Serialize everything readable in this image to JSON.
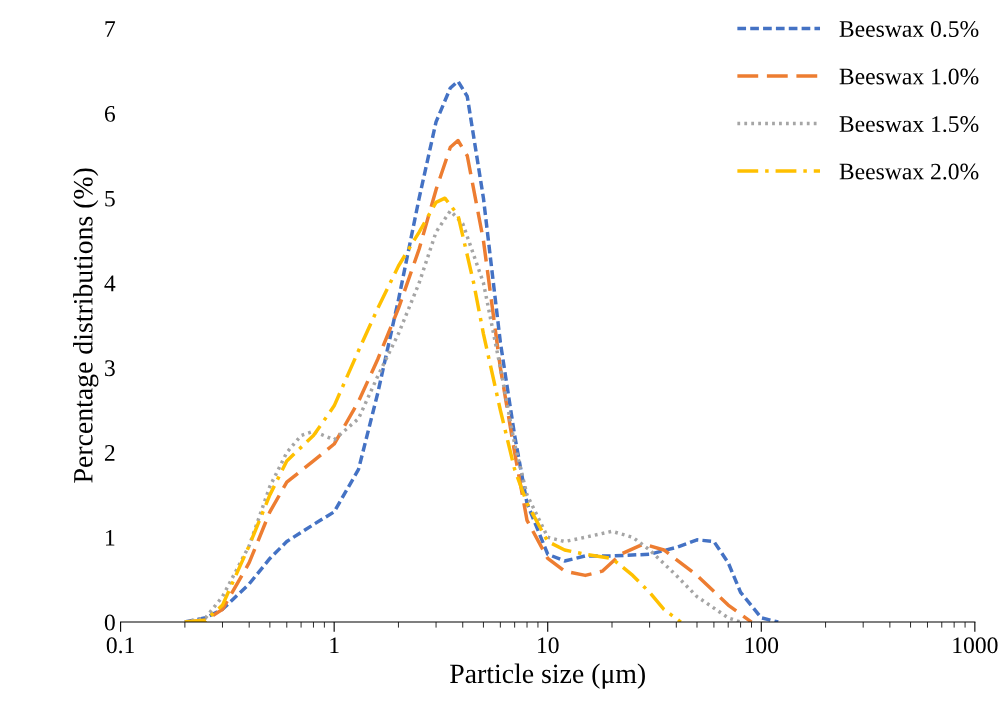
{
  "chart_data": {
    "type": "line",
    "xlabel": "Particle size (μm)",
    "ylabel": "Percentage distributions (%)",
    "log": "x",
    "xlim": [
      0.1,
      1000
    ],
    "xticks": [
      0.1,
      1,
      10,
      100,
      1000
    ],
    "ylim": [
      0,
      7
    ],
    "yticks": [
      0,
      1,
      2,
      3,
      4,
      5,
      6,
      7
    ],
    "grid": false,
    "legend": "top right",
    "marker": "none",
    "series": [
      {
        "name": "Beeswax 0.5%",
        "color": "#4472c4",
        "line_style": "dashed",
        "x": [
          0.2,
          0.25,
          0.3,
          0.4,
          0.5,
          0.6,
          0.8,
          1,
          1.3,
          1.6,
          2,
          2.5,
          3,
          3.5,
          3.8,
          4.2,
          5,
          6,
          7,
          8,
          10,
          12,
          15,
          20,
          30,
          40,
          50,
          60,
          70,
          80,
          100,
          120
        ],
        "values": [
          0,
          0.05,
          0.15,
          0.45,
          0.75,
          0.95,
          1.15,
          1.3,
          1.8,
          2.7,
          3.8,
          5.0,
          5.9,
          6.3,
          6.38,
          6.2,
          5.0,
          3.3,
          2.2,
          1.4,
          0.8,
          0.72,
          0.78,
          0.78,
          0.8,
          0.88,
          0.97,
          0.95,
          0.7,
          0.35,
          0.05,
          0
        ]
      },
      {
        "name": "Beeswax 1.0%",
        "color": "#ed7d31",
        "line_style": "long_dashed",
        "x": [
          0.2,
          0.25,
          0.3,
          0.4,
          0.5,
          0.6,
          0.8,
          1,
          1.3,
          1.6,
          2,
          2.5,
          3,
          3.5,
          3.8,
          4.2,
          5,
          6,
          7,
          8,
          10,
          12,
          15,
          18,
          22,
          28,
          35,
          50,
          70,
          90
        ],
        "values": [
          0,
          0.02,
          0.15,
          0.7,
          1.3,
          1.65,
          1.9,
          2.1,
          2.6,
          3.1,
          3.7,
          4.4,
          5.1,
          5.6,
          5.68,
          5.5,
          4.5,
          3.0,
          2.0,
          1.2,
          0.75,
          0.6,
          0.55,
          0.6,
          0.8,
          0.92,
          0.85,
          0.55,
          0.2,
          0
        ]
      },
      {
        "name": "Beeswax 1.5%",
        "color": "#a5a5a5",
        "line_style": "dotted",
        "x": [
          0.2,
          0.25,
          0.3,
          0.4,
          0.5,
          0.6,
          0.7,
          0.8,
          1,
          1.3,
          1.6,
          2,
          2.5,
          3,
          3.5,
          4,
          5,
          6,
          7,
          8,
          10,
          12,
          15,
          20,
          25,
          30,
          40,
          50,
          70,
          80
        ],
        "values": [
          0,
          0.05,
          0.3,
          0.9,
          1.6,
          2.0,
          2.2,
          2.25,
          2.15,
          2.4,
          2.9,
          3.4,
          4.0,
          4.6,
          4.85,
          4.7,
          4.0,
          3.0,
          2.1,
          1.5,
          1.0,
          0.95,
          1.0,
          1.07,
          1.0,
          0.85,
          0.55,
          0.3,
          0.05,
          0
        ]
      },
      {
        "name": "Beeswax 2.0%",
        "color": "#ffc000",
        "line_style": "dash_dot",
        "x": [
          0.2,
          0.25,
          0.3,
          0.4,
          0.5,
          0.6,
          0.8,
          1,
          1.3,
          1.6,
          2,
          2.5,
          3,
          3.3,
          3.8,
          4.5,
          5,
          6,
          7,
          8,
          10,
          12,
          15,
          20,
          25,
          30,
          35,
          42
        ],
        "values": [
          0,
          0.02,
          0.2,
          0.9,
          1.5,
          1.9,
          2.2,
          2.55,
          3.2,
          3.7,
          4.2,
          4.6,
          4.95,
          5.0,
          4.8,
          4.0,
          3.4,
          2.5,
          1.8,
          1.4,
          0.95,
          0.85,
          0.8,
          0.75,
          0.55,
          0.35,
          0.15,
          0
        ]
      }
    ]
  }
}
